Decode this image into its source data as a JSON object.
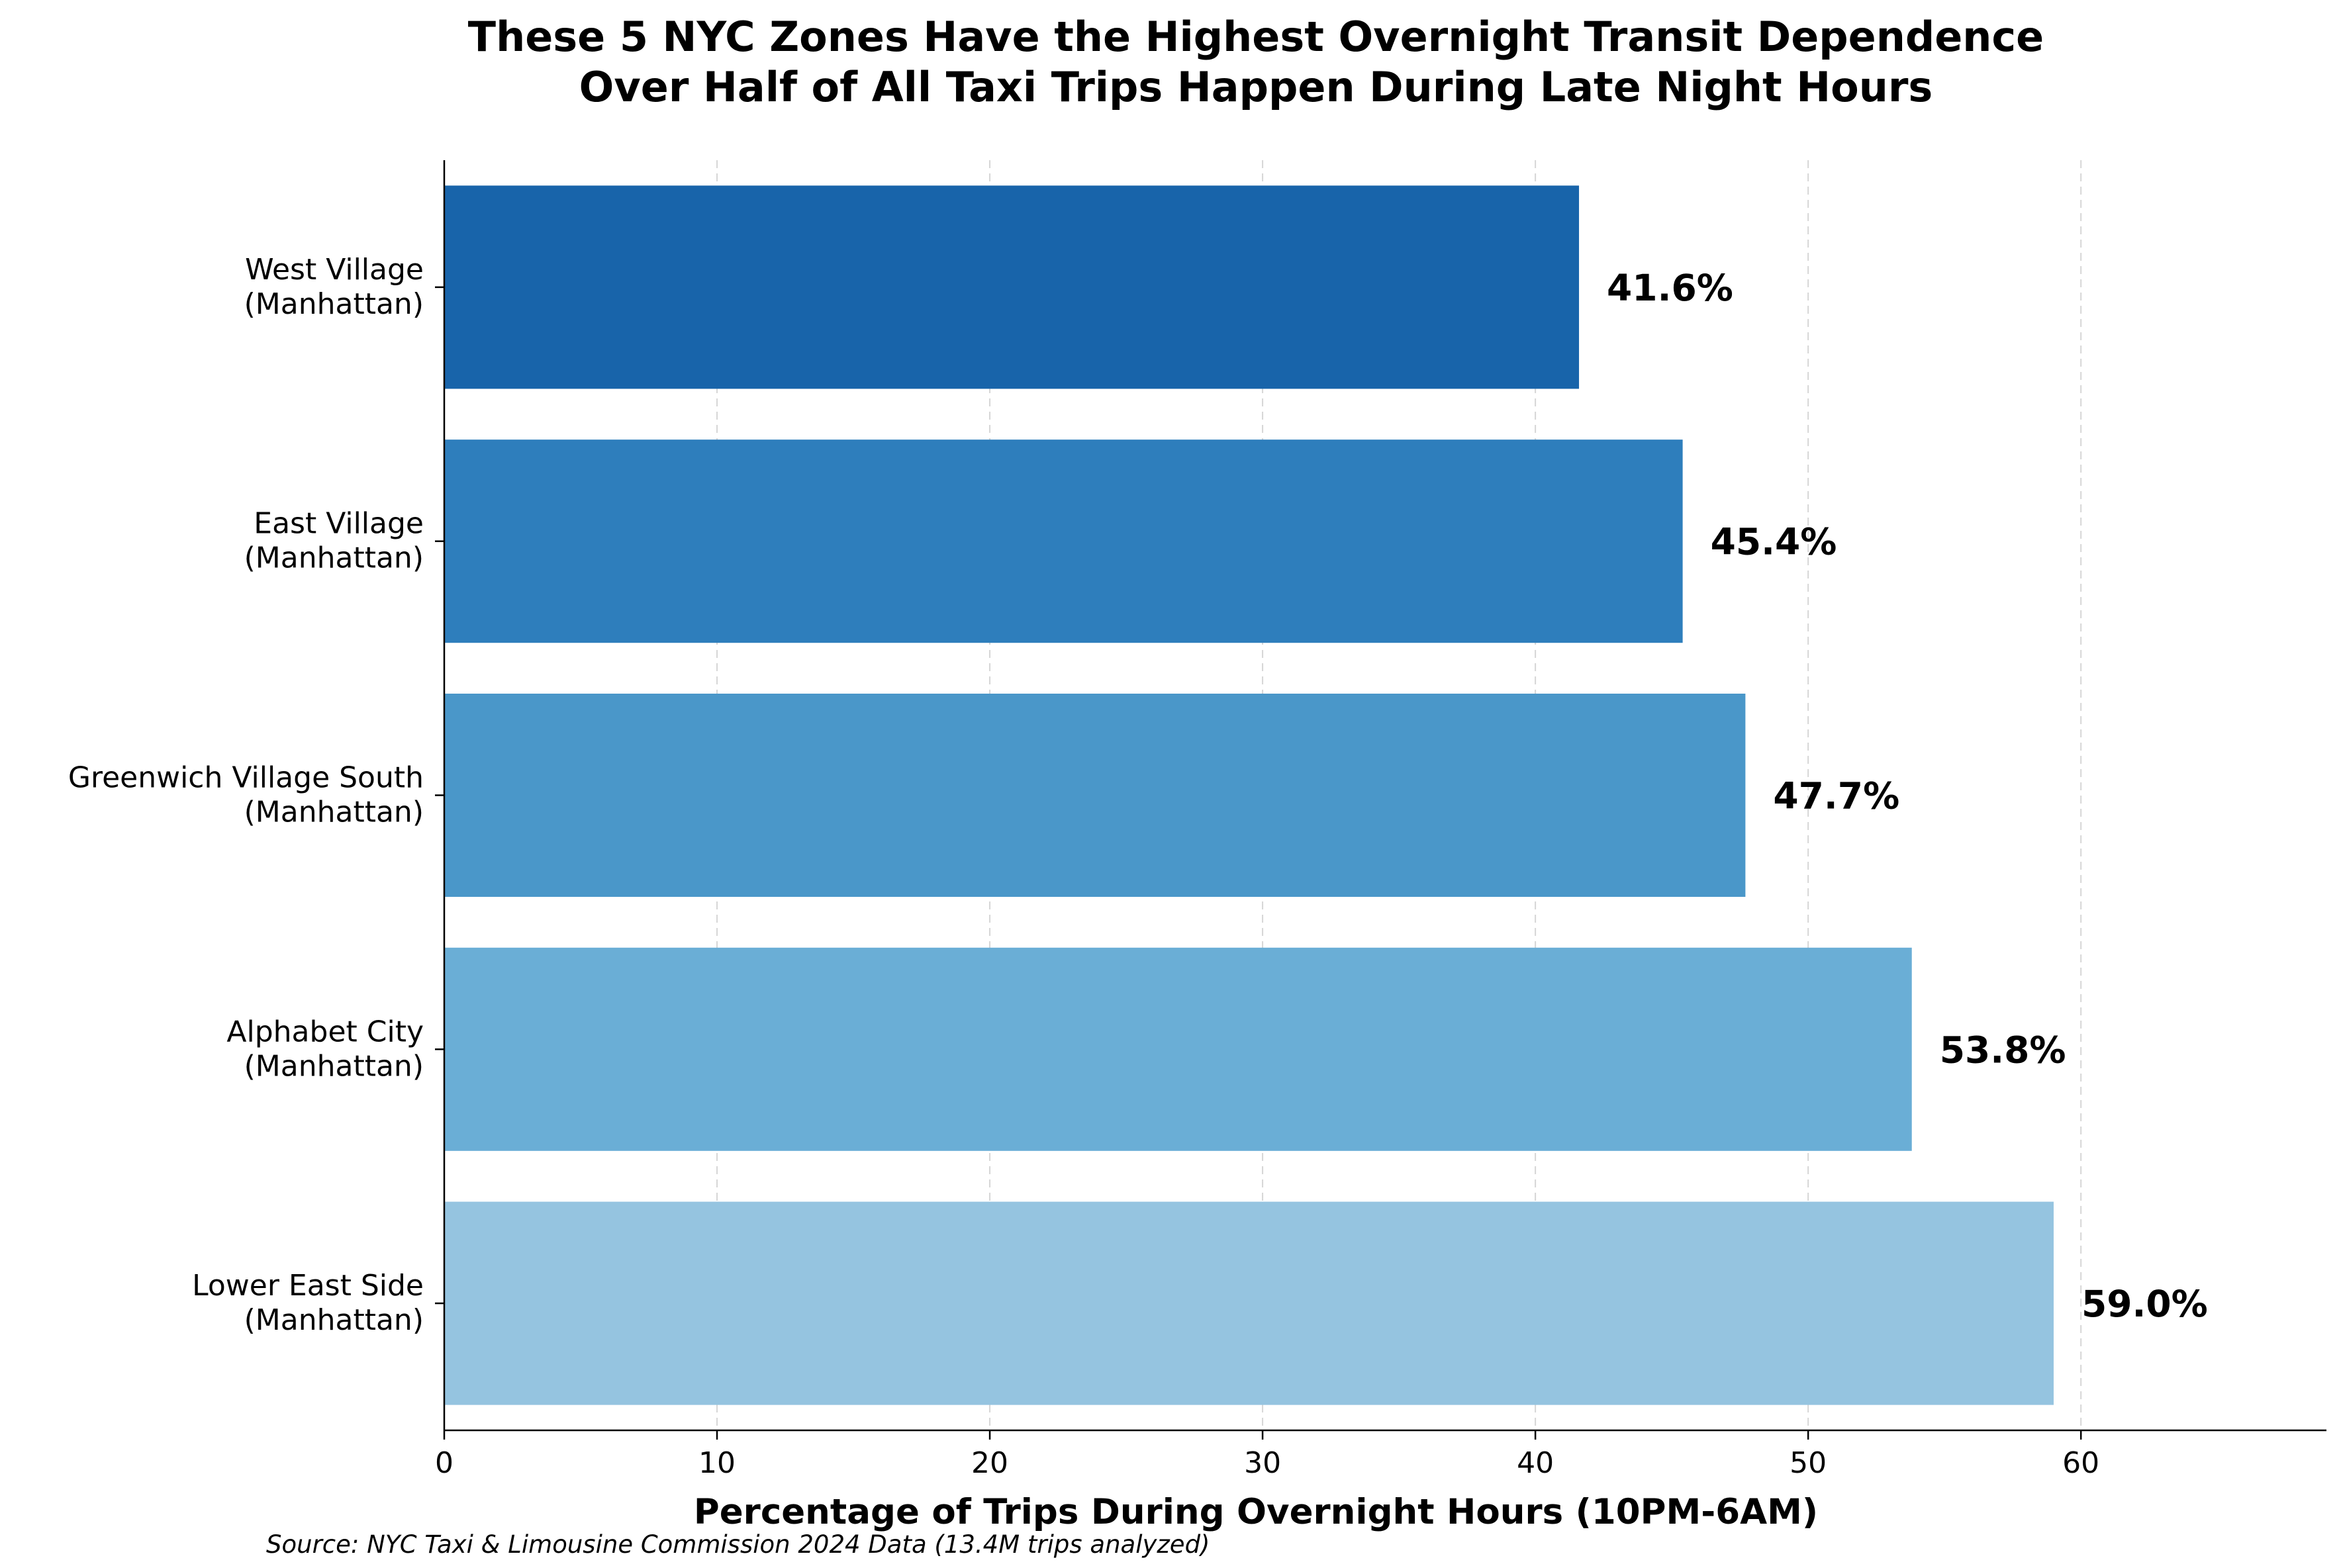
{
  "chart_data": {
    "type": "bar",
    "orientation": "horizontal",
    "title": "These 5 NYC Zones Have the Highest Overnight Transit Dependence",
    "subtitle": "Over Half of All Taxi Trips Happen During Late Night Hours",
    "xlabel": "Percentage of Trips During Overnight Hours (10PM-6AM)",
    "ylabel": "",
    "categories": [
      "West Village\n(Manhattan)",
      "East Village\n(Manhattan)",
      "Greenwich Village South\n(Manhattan)",
      "Alphabet City\n(Manhattan)",
      "Lower East Side\n(Manhattan)"
    ],
    "values": [
      41.6,
      45.4,
      47.7,
      53.8,
      59.0
    ],
    "value_labels": [
      "41.6%",
      "45.4%",
      "47.7%",
      "53.8%",
      "59.0%"
    ],
    "colors": [
      "#1864aa",
      "#2e7ebc",
      "#4a97c9",
      "#6aaed6",
      "#95c4e0"
    ],
    "xlim": [
      0,
      69
    ],
    "xticks": [
      0,
      10,
      20,
      30,
      40,
      50,
      60
    ],
    "xtick_labels": [
      "0",
      "10",
      "20",
      "30",
      "40",
      "50",
      "60"
    ],
    "grid": "x-axis dashed",
    "source": "Source: NYC Taxi & Limousine Commission 2024 Data (13.4M trips analyzed)"
  }
}
